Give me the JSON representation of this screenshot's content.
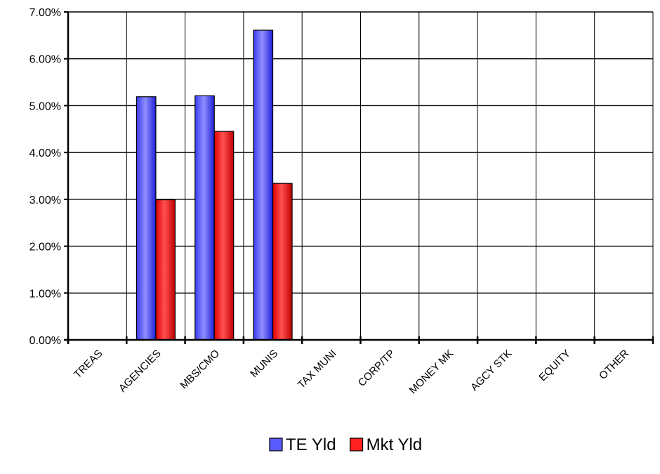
{
  "chart_data": {
    "type": "bar",
    "title": "",
    "xlabel": "",
    "ylabel": "",
    "categories": [
      "TREAS",
      "AGENCIES",
      "MBS/CMO",
      "MUNIS",
      "TAX MUNI",
      "CORP/TP",
      "MONEY MK",
      "AGCY STK",
      "EQUITY",
      "OTHER"
    ],
    "series": [
      {
        "name": "TE Yld",
        "color": "#5a5aff",
        "values": [
          null,
          5.19,
          5.21,
          6.61,
          null,
          null,
          null,
          null,
          null,
          null
        ]
      },
      {
        "name": "Mkt Yld",
        "color": "#ff2020",
        "values": [
          null,
          2.99,
          4.45,
          3.34,
          null,
          null,
          null,
          null,
          null,
          null
        ]
      }
    ],
    "ylim": [
      0,
      7
    ],
    "yticks": [
      "0.00%",
      "1.00%",
      "2.00%",
      "3.00%",
      "4.00%",
      "5.00%",
      "6.00%",
      "7.00%"
    ],
    "grid": true,
    "legend_position": "bottom"
  }
}
